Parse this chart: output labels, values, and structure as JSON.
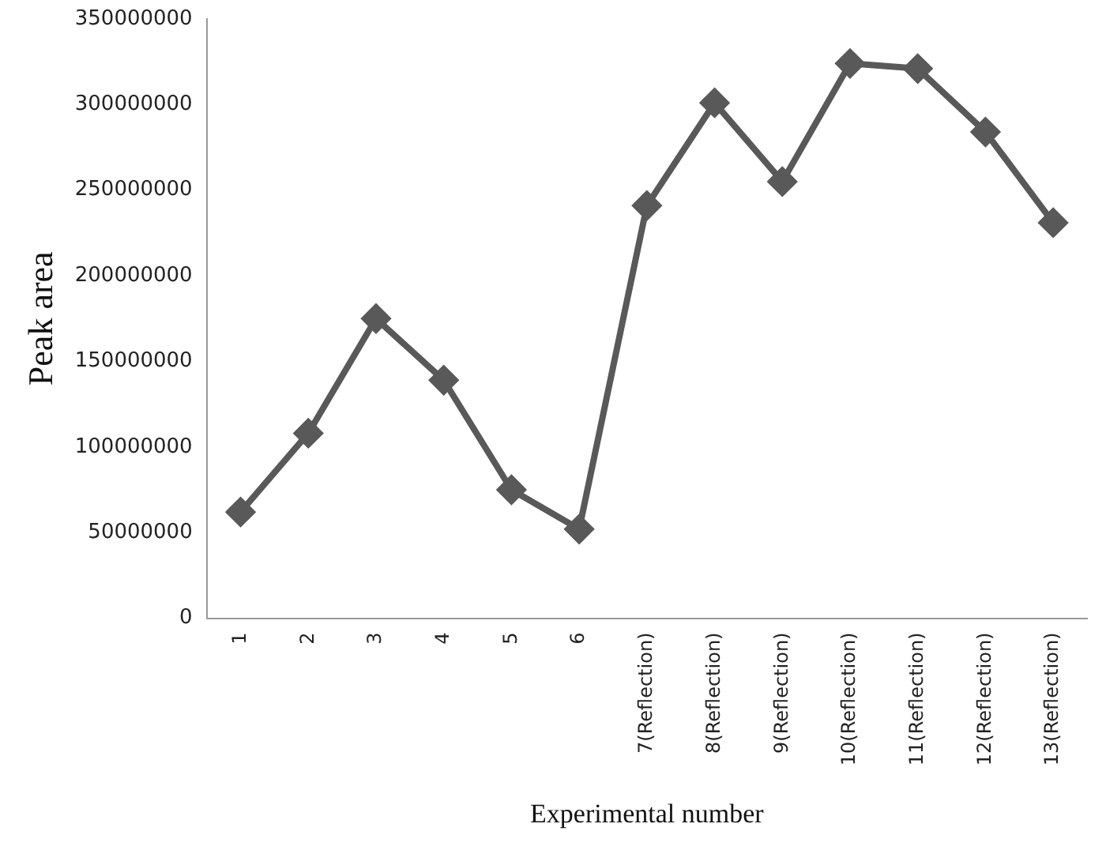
{
  "chart_data": {
    "type": "line",
    "xlabel": "Experimental number",
    "ylabel": "Peak area",
    "categories": [
      "1",
      "2",
      "3",
      "4",
      "5",
      "6",
      "7(Reflection)",
      "8(Reflection)",
      "9(Reflection)",
      "10(Reflection)",
      "11(Reflection)",
      "12(Reflection)",
      "13(Reflection)"
    ],
    "series": [
      {
        "color": "#595959",
        "values": [
          62000000,
          108000000,
          175000000,
          139000000,
          75000000,
          52000000,
          241000000,
          301000000,
          255000000,
          324000000,
          321000000,
          284000000,
          231000000
        ]
      }
    ],
    "ylim": [
      0,
      350000000
    ],
    "yticks": [
      0,
      50000000,
      100000000,
      150000000,
      200000000,
      250000000,
      300000000,
      350000000
    ],
    "grid": false,
    "legend": false,
    "marker": "diamond",
    "line_style": "solid"
  }
}
